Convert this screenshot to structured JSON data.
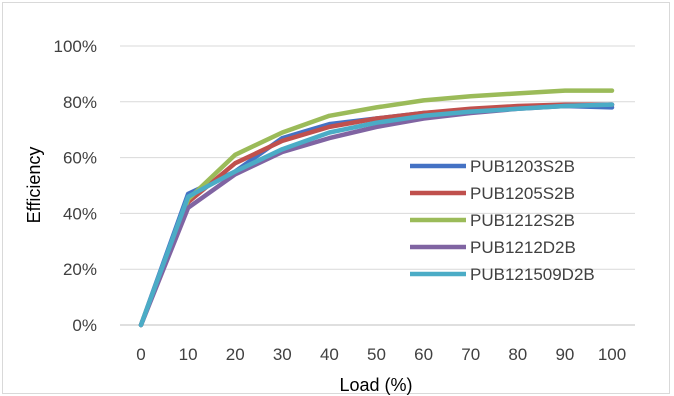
{
  "chart_data": {
    "type": "line",
    "title": "",
    "xlabel": "Load (%)",
    "ylabel": "Efficiency",
    "x": [
      0,
      10,
      20,
      30,
      40,
      50,
      60,
      70,
      80,
      90,
      100
    ],
    "xlim": [
      0,
      100
    ],
    "ylim": [
      0,
      100
    ],
    "yticks": [
      0,
      20,
      40,
      60,
      80,
      100
    ],
    "ytick_labels": [
      "0%",
      "20%",
      "40%",
      "60%",
      "80%",
      "100%"
    ],
    "xtick_labels": [
      "0",
      "10",
      "20",
      "30",
      "40",
      "50",
      "60",
      "70",
      "80",
      "90",
      "100"
    ],
    "grid": true,
    "legend_position": "right",
    "series": [
      {
        "name": "PUB1203S2B",
        "color": "#4472c4",
        "values": [
          0,
          47,
          55,
          67,
          72,
          74,
          76,
          77,
          78,
          78.5,
          78
        ]
      },
      {
        "name": "PUB1205S2B",
        "color": "#c0504d",
        "values": [
          0,
          44,
          58,
          66,
          71,
          74,
          76,
          77.5,
          78.5,
          79,
          79
        ]
      },
      {
        "name": "PUB1212S2B",
        "color": "#9bbb59",
        "values": [
          0,
          45,
          61,
          69,
          75,
          78,
          80.5,
          82,
          83,
          84,
          84
        ]
      },
      {
        "name": "PUB1212D2B",
        "color": "#8064a2",
        "values": [
          0,
          42,
          54,
          62,
          67,
          71,
          74,
          76,
          77.5,
          78.5,
          79
        ]
      },
      {
        "name": "PUB121509D2B",
        "color": "#4bacc6",
        "values": [
          0,
          46,
          55,
          63,
          69,
          72.5,
          75,
          76.5,
          77.5,
          78.5,
          79
        ]
      }
    ]
  }
}
